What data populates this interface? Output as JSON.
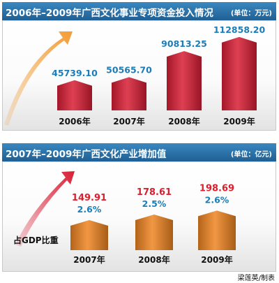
{
  "credit": "梁莲英/制表",
  "chart_data": [
    {
      "type": "bar",
      "title": "2006年–2009年广西文化事业专项资金投入情况",
      "unit": "(单位：万元)",
      "categories": [
        "2006年",
        "2007年",
        "2008年",
        "2009年"
      ],
      "values": [
        45739.1,
        50565.7,
        90813.25,
        112858.2
      ],
      "value_labels": [
        "45739.10",
        "50565.70",
        "90813.25",
        "112858.20"
      ],
      "bar_color": "#d91e35",
      "label_color": "#1a7db9",
      "ylim": [
        0,
        130000
      ]
    },
    {
      "type": "bar",
      "title": "2007年–2009年广西文化产业增加值",
      "unit": "(单位：亿元)",
      "annotation": "占GDP比重",
      "categories": [
        "2007年",
        "2008年",
        "2009年"
      ],
      "values": [
        149.91,
        178.61,
        198.69
      ],
      "value_labels": [
        "149.91",
        "178.61",
        "198.69"
      ],
      "gdp_share": [
        "2.6%",
        "2.5%",
        "2.6%"
      ],
      "bar_color": "#ee8522",
      "label_color_value": "#d9202f",
      "label_color_share": "#1a7db9",
      "ylim": [
        0,
        450
      ]
    }
  ]
}
